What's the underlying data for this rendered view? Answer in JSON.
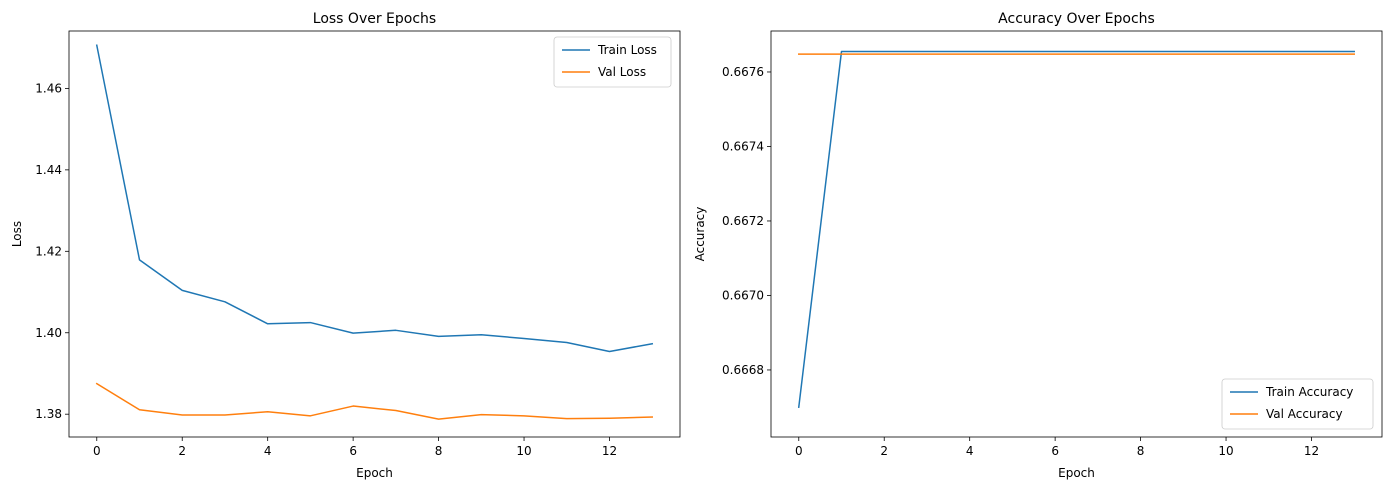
{
  "chart_data": [
    {
      "type": "line",
      "title": "Loss Over Epochs",
      "xlabel": "Epoch",
      "ylabel": "Loss",
      "xlim": [
        -0.65,
        13.65
      ],
      "ylim": [
        1.3744,
        1.4741
      ],
      "xticks": [
        0,
        2,
        4,
        6,
        8,
        10,
        12
      ],
      "yticks": [
        1.38,
        1.4,
        1.42,
        1.44,
        1.46
      ],
      "xtick_labels": [
        "0",
        "2",
        "4",
        "6",
        "8",
        "10",
        "12"
      ],
      "ytick_labels": [
        "1.38",
        "1.40",
        "1.42",
        "1.44",
        "1.46"
      ],
      "grid": false,
      "legend_position": "upper right",
      "x": [
        0,
        1,
        2,
        3,
        4,
        5,
        6,
        7,
        8,
        9,
        10,
        11,
        12,
        13
      ],
      "series": [
        {
          "name": "Train Loss",
          "color": "#1f77b4",
          "values": [
            1.4706,
            1.4179,
            1.4104,
            1.4076,
            1.4022,
            1.4025,
            1.3999,
            1.4006,
            1.3991,
            1.3995,
            1.3986,
            1.3976,
            1.3954,
            1.3973
          ]
        },
        {
          "name": "Val Loss",
          "color": "#ff7f0e",
          "values": [
            1.3875,
            1.3811,
            1.3798,
            1.3798,
            1.3806,
            1.3796,
            1.382,
            1.3809,
            1.3788,
            1.3799,
            1.3796,
            1.3789,
            1.379,
            1.3793
          ]
        }
      ]
    },
    {
      "type": "line",
      "title": "Accuracy Over Epochs",
      "xlabel": "Epoch",
      "ylabel": "Accuracy",
      "xlim": [
        -0.65,
        13.65
      ],
      "ylim": [
        0.66662,
        0.66771
      ],
      "xticks": [
        0,
        2,
        4,
        6,
        8,
        10,
        12
      ],
      "yticks": [
        0.6668,
        0.667,
        0.6672,
        0.6674,
        0.6676
      ],
      "xtick_labels": [
        "0",
        "2",
        "4",
        "6",
        "8",
        "10",
        "12"
      ],
      "ytick_labels": [
        "0.6668",
        "0.6670",
        "0.6672",
        "0.6674",
        "0.6676"
      ],
      "grid": false,
      "legend_position": "lower right",
      "x": [
        0,
        1,
        2,
        3,
        4,
        5,
        6,
        7,
        8,
        9,
        10,
        11,
        12,
        13
      ],
      "series": [
        {
          "name": "Train Accuracy",
          "color": "#1f77b4",
          "values": [
            0.6667,
            0.667655,
            0.667655,
            0.667655,
            0.667655,
            0.667655,
            0.667655,
            0.667655,
            0.667655,
            0.667655,
            0.667655,
            0.667655,
            0.667655,
            0.667655
          ]
        },
        {
          "name": "Val Accuracy",
          "color": "#ff7f0e",
          "values": [
            0.667648,
            0.667648,
            0.667648,
            0.667648,
            0.667648,
            0.667648,
            0.667648,
            0.667648,
            0.667648,
            0.667648,
            0.667648,
            0.667648,
            0.667648,
            0.667648
          ]
        }
      ]
    }
  ]
}
